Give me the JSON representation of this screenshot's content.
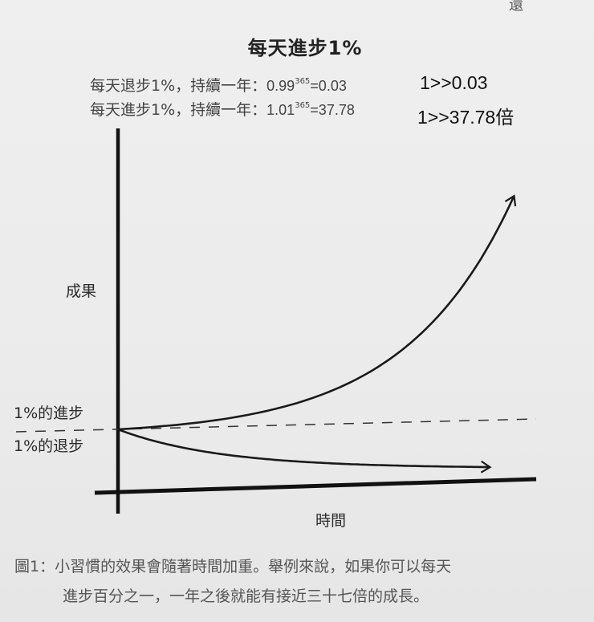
{
  "corner_text": "還",
  "title": "每天進步1%",
  "formulas": [
    {
      "prefix": "每天退步1%，持續一年：",
      "base": "0.99",
      "exponent": "365",
      "result": "=0.03"
    },
    {
      "prefix": "每天進步1%，持續一年：",
      "base": "1.01",
      "exponent": "365",
      "result": "=37.78"
    }
  ],
  "handwritten_results": [
    "1>>0.03",
    "1>>37.78倍"
  ],
  "chart_data": {
    "type": "line",
    "title": "每天進步1%",
    "xlabel": "時間",
    "ylabel": "成果",
    "baseline_labels": {
      "above": "1%的進步",
      "below": "1%的退步"
    },
    "baseline_value": 1,
    "days": 365,
    "series": [
      {
        "name": "1%的進步",
        "growth": 1.01,
        "value_start": 1,
        "value_end": 37.78
      },
      {
        "name": "1%的退步",
        "growth": 0.99,
        "value_start": 1,
        "value_end": 0.03
      }
    ],
    "grid": false,
    "colors": {
      "axis": "#111111",
      "curve": "#1a1a1a",
      "dashed": "#333333"
    }
  },
  "caption": {
    "line1": "圖1：小習慣的效果會隨著時間加重。舉例來說，如果你可以每天",
    "line2": "進步百分之一，一年之後就能有接近三十七倍的成長。"
  }
}
